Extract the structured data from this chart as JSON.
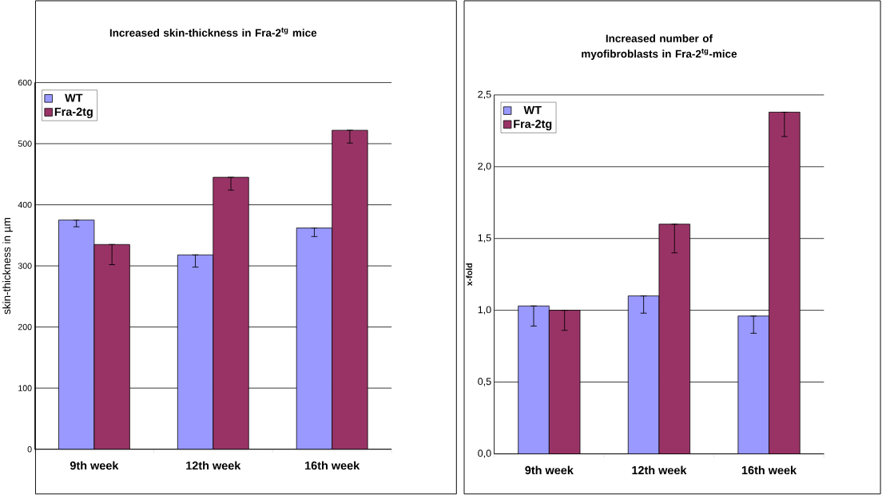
{
  "chart_data": [
    {
      "type": "bar",
      "title": "Increased skin-thickness in Fra-2$^{tg}$ mice",
      "ylabel": "skin-thickness in µm",
      "categories": [
        "9th week",
        "12th week",
        "16th week"
      ],
      "series": [
        {
          "name": "WT",
          "color": "#9999ff",
          "values": [
            375,
            318,
            362
          ],
          "errors": [
            [
              364,
              375
            ],
            [
              298,
              318
            ],
            [
              348,
              362
            ]
          ]
        },
        {
          "name": "Fra-2tg",
          "color": "#993366",
          "values": [
            335,
            445,
            522
          ],
          "errors": [
            [
              302,
              335
            ],
            [
              424,
              445
            ],
            [
              501,
              522
            ]
          ]
        }
      ],
      "ylim": [
        0,
        600
      ],
      "yticks": [
        0,
        100,
        200,
        300,
        400,
        500,
        600
      ],
      "grid": "y",
      "legend": "top left"
    },
    {
      "type": "bar",
      "title": "Increased number of myofibroblasts in Fra-2$^{tg}$-mice",
      "ylabel": "x-fold",
      "categories": [
        "9th week",
        "12th week",
        "16th week"
      ],
      "series": [
        {
          "name": "WT",
          "color": "#9999ff",
          "values": [
            1.03,
            1.1,
            0.96
          ],
          "errors": [
            [
              0.89,
              1.03
            ],
            [
              0.98,
              1.1
            ],
            [
              0.84,
              0.96
            ]
          ]
        },
        {
          "name": "Fra-2tg",
          "color": "#993366",
          "values": [
            1.0,
            1.6,
            2.38
          ],
          "errors": [
            [
              0.86,
              1.0
            ],
            [
              1.4,
              1.6
            ],
            [
              2.21,
              2.38
            ]
          ]
        }
      ],
      "ylim": [
        0,
        2.5
      ],
      "yticks": [
        {
          "value": 0,
          "label": "0,0"
        },
        {
          "value": 0.5,
          "label": "0,5"
        },
        {
          "value": 1.0,
          "label": "1,0"
        },
        {
          "value": 1.5,
          "label": "1,5"
        },
        {
          "value": 2.0,
          "label": "2,0"
        },
        {
          "value": 2.5,
          "label": "2,5"
        }
      ],
      "grid": "y",
      "legend": "top left"
    }
  ]
}
